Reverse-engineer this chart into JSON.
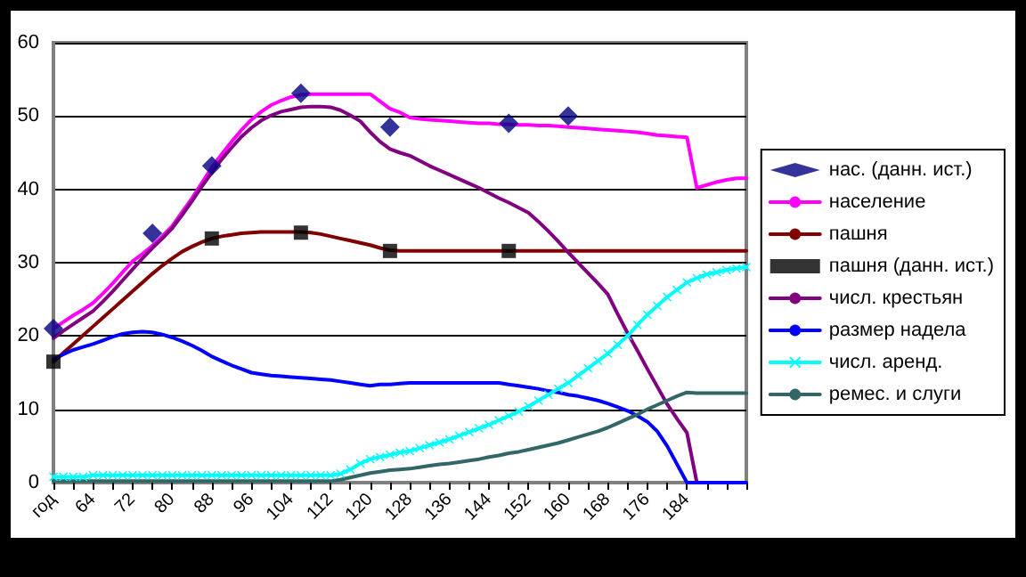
{
  "chart_data": {
    "type": "line",
    "categories": [
      "год",
      null,
      null,
      null,
      "64",
      null,
      null,
      null,
      "72",
      null,
      null,
      null,
      "80",
      null,
      null,
      null,
      "88",
      null,
      null,
      null,
      "96",
      null,
      null,
      null,
      "104",
      null,
      null,
      null,
      "112",
      null,
      null,
      null,
      "120",
      null,
      null,
      null,
      "128",
      null,
      null,
      null,
      "136",
      null,
      null,
      null,
      "144",
      null,
      null,
      null,
      "152",
      null,
      null,
      null,
      "160",
      null,
      null,
      null,
      "168",
      null,
      null,
      null,
      "176",
      null,
      null,
      null,
      "184",
      null,
      null,
      null,
      null,
      null,
      null
    ],
    "ylim": [
      0,
      60
    ],
    "yticks": [
      0,
      10,
      20,
      30,
      40,
      50,
      60
    ],
    "grid": "y",
    "legend": "right",
    "series": [
      {
        "name": "нас. (данн. ист.)",
        "type": "scatter",
        "marker": "diamond",
        "color": "#000080",
        "values": [
          21,
          null,
          null,
          null,
          null,
          null,
          null,
          null,
          null,
          null,
          34,
          null,
          null,
          null,
          null,
          null,
          43.2,
          null,
          null,
          null,
          null,
          null,
          null,
          null,
          null,
          53.1,
          null,
          null,
          null,
          null,
          null,
          null,
          null,
          null,
          48.5,
          null,
          null,
          null,
          null,
          null,
          null,
          null,
          null,
          null,
          null,
          null,
          49,
          null,
          null,
          null,
          null,
          null,
          50,
          null,
          null,
          null,
          null,
          null,
          null,
          null,
          null,
          null,
          null,
          null,
          null,
          null,
          null,
          null,
          null,
          null,
          null
        ]
      },
      {
        "name": "население",
        "marker": "none",
        "color": "#ff00ff",
        "values": [
          21,
          21.9,
          22.8,
          23.6,
          24.5,
          25.8,
          27.2,
          28.7,
          30.2,
          31.2,
          32.3,
          33.6,
          35,
          36.9,
          38.8,
          40.9,
          43,
          44.8,
          46.5,
          48.1,
          49.5,
          50.6,
          51.5,
          52.1,
          52.6,
          52.9,
          53,
          53,
          53,
          53,
          53,
          53,
          53,
          52,
          51,
          50.5,
          49.8,
          49.6,
          49.5,
          49.4,
          49.3,
          49.2,
          49.1,
          49,
          49,
          48.9,
          48.9,
          48.8,
          48.8,
          48.7,
          48.7,
          48.6,
          48.5,
          48.4,
          48.3,
          48.2,
          48.1,
          48,
          47.9,
          47.8,
          47.6,
          47.4,
          47.3,
          47.2,
          47.1,
          40.2,
          40.6,
          41,
          41.3,
          41.5,
          41.5
        ]
      },
      {
        "name": "пашня",
        "marker": "none",
        "color": "#800000",
        "values": [
          16.5,
          17.7,
          18.9,
          20.1,
          21.3,
          22.5,
          23.7,
          24.9,
          26.1,
          27.3,
          28.5,
          29.6,
          30.6,
          31.5,
          32.2,
          32.8,
          33.3,
          33.6,
          33.8,
          34,
          34.1,
          34.2,
          34.2,
          34.2,
          34.2,
          34.2,
          34.1,
          33.9,
          33.6,
          33.3,
          33,
          32.7,
          32.4,
          32,
          31.7,
          31.6,
          31.6,
          31.6,
          31.6,
          31.6,
          31.6,
          31.6,
          31.6,
          31.6,
          31.6,
          31.6,
          31.6,
          31.6,
          31.6,
          31.6,
          31.6,
          31.6,
          31.6,
          31.6,
          31.6,
          31.6,
          31.6,
          31.6,
          31.6,
          31.6,
          31.6,
          31.6,
          31.6,
          31.6,
          31.6,
          31.6,
          31.6,
          31.6,
          31.6,
          31.6,
          31.6
        ]
      },
      {
        "name": "пашня (данн. ист.)",
        "type": "scatter",
        "marker": "square",
        "color": "#000000",
        "values": [
          16.5,
          null,
          null,
          null,
          null,
          null,
          null,
          null,
          null,
          null,
          null,
          null,
          null,
          null,
          null,
          null,
          33.3,
          null,
          null,
          null,
          null,
          null,
          null,
          null,
          null,
          34.1,
          null,
          null,
          null,
          null,
          null,
          null,
          null,
          null,
          31.6,
          null,
          null,
          null,
          null,
          null,
          null,
          null,
          null,
          null,
          null,
          null,
          31.6,
          null,
          null,
          null,
          null,
          null,
          null,
          null,
          null,
          null,
          null,
          null,
          null,
          null,
          null,
          null,
          null,
          null,
          null,
          null,
          null,
          null,
          null,
          null,
          null
        ]
      },
      {
        "name": "числ. крестьян",
        "marker": "none",
        "color": "#800080",
        "values": [
          19.7,
          20.7,
          21.6,
          22.5,
          23.4,
          24.7,
          26.1,
          27.6,
          29.1,
          30.6,
          32,
          33.3,
          34.7,
          36.5,
          38.4,
          40.4,
          42.3,
          44.1,
          45.7,
          47.2,
          48.4,
          49.4,
          50.1,
          50.6,
          50.9,
          51.2,
          51.3,
          51.3,
          51.2,
          50.8,
          50.1,
          49.3,
          47.8,
          46.5,
          45.5,
          45,
          44.6,
          43.9,
          43.2,
          42.6,
          42,
          41.4,
          40.8,
          40.2,
          39.5,
          38.8,
          38.2,
          37.5,
          36.8,
          35.6,
          34.3,
          32.9,
          31.4,
          30,
          28.6,
          27.2,
          25.7,
          23,
          20.4,
          18,
          15.5,
          13.1,
          10.7,
          8.7,
          6.8,
          0,
          null,
          null,
          null,
          null,
          null
        ]
      },
      {
        "name": "размер надела",
        "marker": "none",
        "color": "#0000ff",
        "values": [
          16.8,
          17.5,
          18.1,
          18.5,
          18.9,
          19.4,
          19.9,
          20.3,
          20.5,
          20.6,
          20.5,
          20.2,
          19.8,
          19.3,
          18.7,
          18,
          17.2,
          16.6,
          16,
          15.5,
          15,
          14.8,
          14.6,
          14.5,
          14.4,
          14.3,
          14.2,
          14.1,
          14,
          13.8,
          13.6,
          13.4,
          13.2,
          13.4,
          13.4,
          13.5,
          13.6,
          13.6,
          13.6,
          13.6,
          13.6,
          13.6,
          13.6,
          13.6,
          13.6,
          13.6,
          13.4,
          13.2,
          13,
          12.8,
          12.5,
          12.3,
          12,
          11.8,
          11.5,
          11.2,
          10.8,
          10.3,
          9.8,
          9.1,
          8.3,
          7,
          5,
          2.5,
          0,
          0,
          0,
          0,
          0,
          0,
          0
        ]
      },
      {
        "name": "числ. аренд.",
        "marker": "cross",
        "color": "#00ffff",
        "values": [
          0.8,
          0.8,
          0.8,
          0.8,
          1,
          1,
          1,
          1,
          1,
          1,
          1,
          1,
          1,
          1,
          1,
          1,
          1,
          1,
          1,
          1,
          1,
          1,
          1,
          1,
          1,
          1,
          1,
          1,
          1,
          1.2,
          1.8,
          2.6,
          3.2,
          3.5,
          3.8,
          4.1,
          4.3,
          4.7,
          5.1,
          5.5,
          5.9,
          6.4,
          6.9,
          7.4,
          7.9,
          8.5,
          9.1,
          9.7,
          10.4,
          11.2,
          12,
          12.8,
          13.6,
          14.6,
          15.6,
          16.6,
          17.6,
          18.8,
          20,
          21.5,
          22.9,
          24.1,
          25.3,
          26.3,
          27.3,
          27.9,
          28.4,
          28.7,
          29,
          29.2,
          29.4
        ]
      },
      {
        "name": "ремес. и слуги",
        "marker": "none",
        "color": "#336666",
        "values": [
          0.2,
          0.2,
          0.2,
          0.2,
          0.2,
          0.2,
          0.2,
          0.2,
          0.2,
          0.2,
          0.2,
          0.2,
          0.2,
          0.2,
          0.2,
          0.2,
          0.2,
          0.2,
          0.2,
          0.2,
          0.2,
          0.2,
          0.2,
          0.2,
          0.2,
          0.2,
          0.2,
          0.2,
          0.2,
          0.4,
          0.7,
          1,
          1.3,
          1.5,
          1.7,
          1.8,
          1.9,
          2.1,
          2.3,
          2.5,
          2.6,
          2.8,
          3,
          3.2,
          3.5,
          3.7,
          4,
          4.2,
          4.5,
          4.8,
          5.1,
          5.4,
          5.8,
          6.2,
          6.6,
          7,
          7.5,
          8.1,
          8.7,
          9.3,
          10,
          10.6,
          11.2,
          11.8,
          12.3,
          12.2,
          12.2,
          12.2,
          12.2,
          12.2,
          12.2
        ]
      }
    ]
  }
}
